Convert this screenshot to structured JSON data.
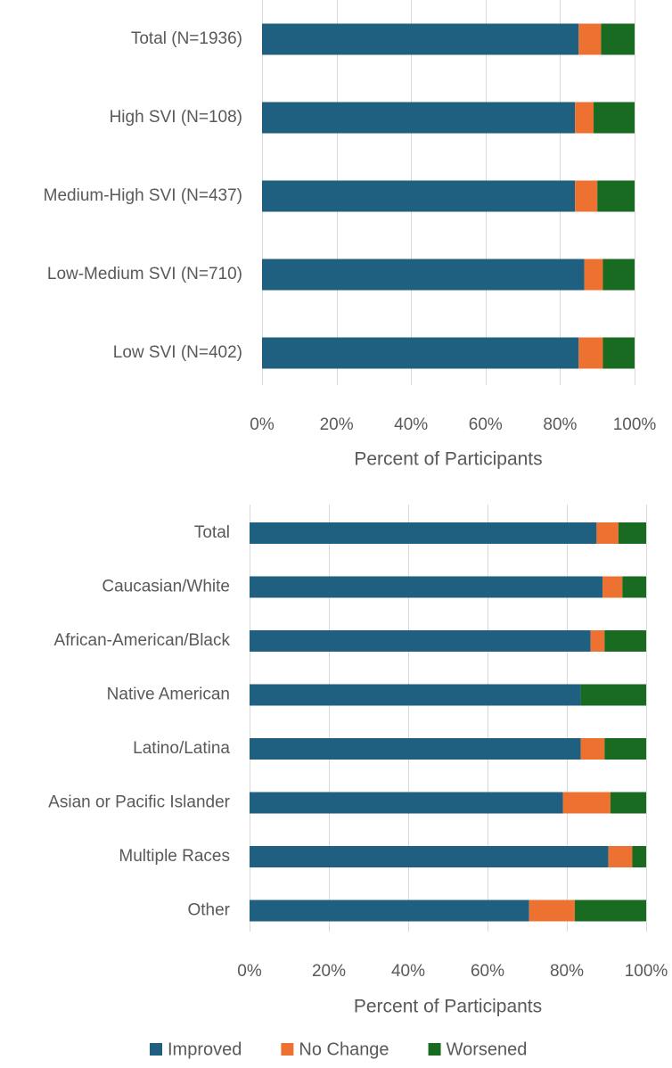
{
  "chart_data": [
    {
      "type": "bar",
      "orientation": "horizontal",
      "stacked": true,
      "categories": [
        "Total (N=1936)",
        "High SVI (N=108)",
        "Medium-High SVI (N=437)",
        "Low-Medium SVI (N=710)",
        "Low SVI (N=402)"
      ],
      "series": [
        {
          "name": "Improved",
          "values": [
            85,
            84,
            84,
            86.5,
            85
          ]
        },
        {
          "name": "No Change",
          "values": [
            6,
            5,
            6,
            5,
            6.5
          ]
        },
        {
          "name": "Worsened",
          "values": [
            9,
            11,
            10,
            8.5,
            8.5
          ]
        }
      ],
      "xlabel": "Percent of Participants",
      "xticks": [
        "0%",
        "20%",
        "40%",
        "60%",
        "80%",
        "100%"
      ],
      "xlim": [
        0,
        100
      ],
      "grid": true
    },
    {
      "type": "bar",
      "orientation": "horizontal",
      "stacked": true,
      "categories": [
        "Total",
        "Caucasian/White",
        "African-American/Black",
        "Native American",
        "Latino/Latina",
        "Asian or Pacific Islander",
        "Multiple Races",
        "Other"
      ],
      "series": [
        {
          "name": "Improved",
          "values": [
            87.5,
            89,
            86,
            83.5,
            83.5,
            79,
            90.5,
            70.5
          ]
        },
        {
          "name": "No Change",
          "values": [
            5.5,
            5,
            3.5,
            0,
            6,
            12,
            6,
            11.5
          ]
        },
        {
          "name": "Worsened",
          "values": [
            7,
            6,
            10.5,
            16.5,
            10.5,
            9,
            3.5,
            18
          ]
        }
      ],
      "xlabel": "Percent of Participants",
      "xticks": [
        "0%",
        "20%",
        "40%",
        "60%",
        "80%",
        "100%"
      ],
      "xlim": [
        0,
        100
      ],
      "grid": true
    }
  ],
  "legend": {
    "position": "bottom",
    "items": [
      {
        "name": "Improved",
        "color": "#1f5f7f"
      },
      {
        "name": "No Change",
        "color": "#ed7232"
      },
      {
        "name": "Worsened",
        "color": "#1a6b22"
      }
    ]
  }
}
